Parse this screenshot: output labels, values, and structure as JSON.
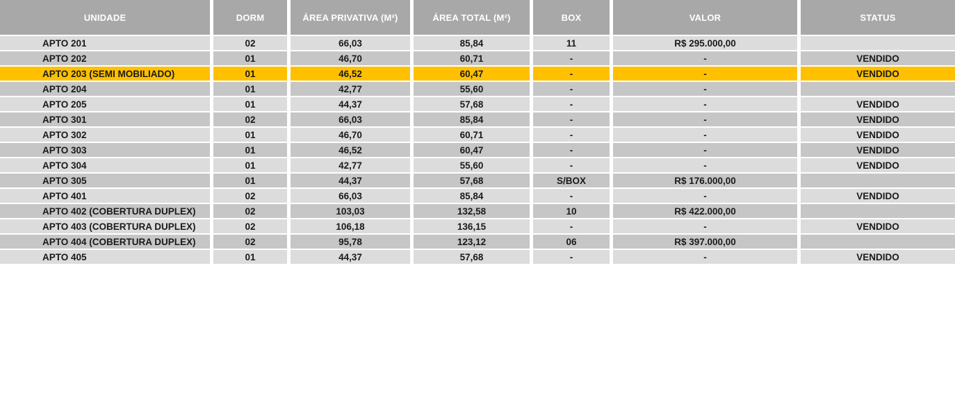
{
  "colors": {
    "header_bg": "#a8a8a8",
    "header_text": "#ffffff",
    "row_light": "#dcdcdc",
    "row_dark": "#c6c6c6",
    "highlight": "#ffc000",
    "text": "#1a1a1a"
  },
  "table": {
    "columns": [
      {
        "key": "unidade",
        "label": "UNIDADE"
      },
      {
        "key": "dorm",
        "label": "DORM"
      },
      {
        "key": "area_privativa",
        "label": "ÁREA PRIVATIVA (M²)"
      },
      {
        "key": "area_total",
        "label": "ÁREA TOTAL (M²)"
      },
      {
        "key": "box",
        "label": "BOX"
      },
      {
        "key": "valor",
        "label": "VALOR"
      },
      {
        "key": "status",
        "label": "STATUS"
      }
    ],
    "rows": [
      {
        "unidade": "APTO 201",
        "dorm": "02",
        "area_privativa": "66,03",
        "area_total": "85,84",
        "box": "11",
        "valor": "R$ 295.000,00",
        "status": "",
        "highlight": false
      },
      {
        "unidade": "APTO 202",
        "dorm": "01",
        "area_privativa": "46,70",
        "area_total": "60,71",
        "box": "-",
        "valor": "-",
        "status": "VENDIDO",
        "highlight": false
      },
      {
        "unidade": "APTO 203 (SEMI MOBILIADO)",
        "dorm": "01",
        "area_privativa": "46,52",
        "area_total": "60,47",
        "box": "-",
        "valor": "-",
        "status": "VENDIDO",
        "highlight": true
      },
      {
        "unidade": "APTO 204",
        "dorm": "01",
        "area_privativa": "42,77",
        "area_total": "55,60",
        "box": "-",
        "valor": "-",
        "status": "",
        "highlight": false
      },
      {
        "unidade": "APTO 205",
        "dorm": "01",
        "area_privativa": "44,37",
        "area_total": "57,68",
        "box": "-",
        "valor": "-",
        "status": "VENDIDO",
        "highlight": false
      },
      {
        "unidade": "APTO 301",
        "dorm": "02",
        "area_privativa": "66,03",
        "area_total": "85,84",
        "box": "-",
        "valor": "-",
        "status": "VENDIDO",
        "highlight": false
      },
      {
        "unidade": "APTO 302",
        "dorm": "01",
        "area_privativa": "46,70",
        "area_total": "60,71",
        "box": "-",
        "valor": "-",
        "status": "VENDIDO",
        "highlight": false
      },
      {
        "unidade": "APTO 303",
        "dorm": "01",
        "area_privativa": "46,52",
        "area_total": "60,47",
        "box": "-",
        "valor": "-",
        "status": "VENDIDO",
        "highlight": false
      },
      {
        "unidade": "APTO 304",
        "dorm": "01",
        "area_privativa": "42,77",
        "area_total": "55,60",
        "box": "-",
        "valor": "-",
        "status": "VENDIDO",
        "highlight": false
      },
      {
        "unidade": "APTO 305",
        "dorm": "01",
        "area_privativa": "44,37",
        "area_total": "57,68",
        "box": "S/BOX",
        "valor": "R$ 176.000,00",
        "status": "",
        "highlight": false
      },
      {
        "unidade": "APTO 401",
        "dorm": "02",
        "area_privativa": "66,03",
        "area_total": "85,84",
        "box": "-",
        "valor": "-",
        "status": "VENDIDO",
        "highlight": false
      },
      {
        "unidade": "APTO 402 (COBERTURA DUPLEX)",
        "dorm": "02",
        "area_privativa": "103,03",
        "area_total": "132,58",
        "box": "10",
        "valor": "R$ 422.000,00",
        "status": "",
        "highlight": false
      },
      {
        "unidade": "APTO 403 (COBERTURA DUPLEX)",
        "dorm": "02",
        "area_privativa": "106,18",
        "area_total": "136,15",
        "box": "-",
        "valor": "-",
        "status": "VENDIDO",
        "highlight": false
      },
      {
        "unidade": "APTO 404 (COBERTURA DUPLEX)",
        "dorm": "02",
        "area_privativa": "95,78",
        "area_total": "123,12",
        "box": "06",
        "valor": "R$ 397.000,00",
        "status": "",
        "highlight": false
      },
      {
        "unidade": "APTO 405",
        "dorm": "01",
        "area_privativa": "44,37",
        "area_total": "57,68",
        "box": "-",
        "valor": "-",
        "status": "VENDIDO",
        "highlight": false
      }
    ]
  }
}
